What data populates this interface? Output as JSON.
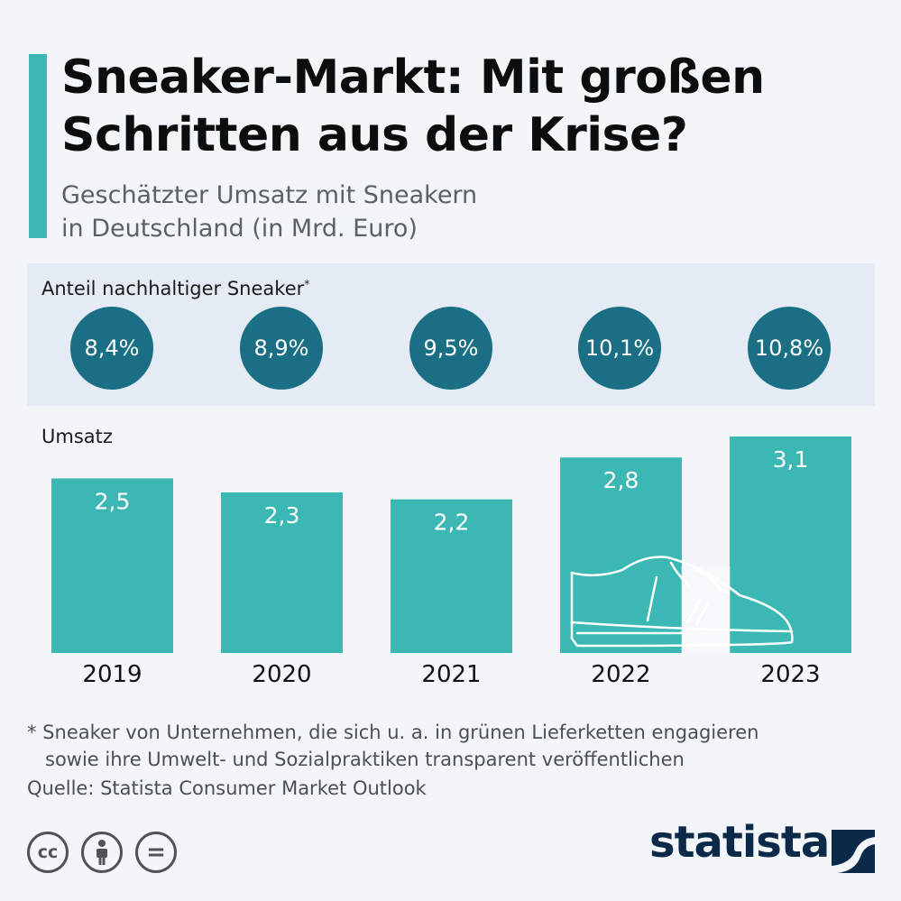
{
  "header": {
    "title": "Sneaker-Markt: Mit großen Schritten aus der Krise?",
    "subtitle_line1": "Geschätzter Umsatz mit Sneakern",
    "subtitle_line2": "in Deutschland (in Mrd. Euro)"
  },
  "share_panel": {
    "label": "Anteil nachhaltiger Sneaker",
    "label_mark": "*",
    "values": [
      "8,4%",
      "8,9%",
      "9,5%",
      "10,1%",
      "10,8%"
    ]
  },
  "chart_data": {
    "type": "bar",
    "title": "Umsatz",
    "categories": [
      "2019",
      "2020",
      "2021",
      "2022",
      "2023"
    ],
    "values": [
      2.5,
      2.3,
      2.2,
      2.8,
      3.1
    ],
    "value_labels": [
      "2,5",
      "2,3",
      "2,2",
      "2,8",
      "3,1"
    ],
    "xlabel": "",
    "ylabel": "",
    "ylim": [
      0,
      3.1
    ],
    "grid": false,
    "colors": {
      "bar": "#3bb8b3",
      "circle": "#1b6f85"
    },
    "sustainable_share_percent": [
      8.4,
      8.9,
      9.5,
      10.1,
      10.8
    ]
  },
  "footer": {
    "footnote_line1": "* Sneaker von Unternehmen, die sich u. a. in grünen Lieferketten engagieren",
    "footnote_line2": "sowie ihre Umwelt- und Sozialpraktiken transparent veröffentlichen",
    "source": "Quelle: Statista Consumer Market Outlook",
    "license_icons": [
      {
        "icon": "cc-icon",
        "glyph": "cc"
      },
      {
        "icon": "by-icon",
        "glyph": ""
      },
      {
        "icon": "nd-icon",
        "glyph": "="
      }
    ],
    "logo": "statista"
  },
  "decoration": {
    "icon": "sneaker-icon"
  }
}
